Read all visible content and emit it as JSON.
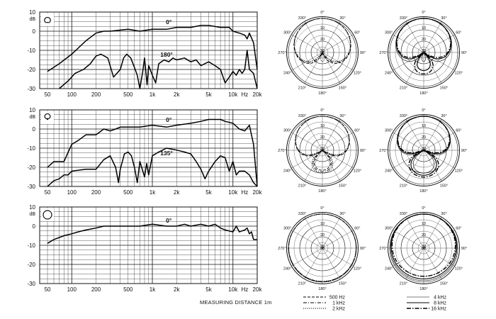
{
  "measurement_note": "MEASURING DISTANCE 1m",
  "freq_ticks": [
    "50",
    "100",
    "200",
    "500",
    "1k",
    "2k",
    "5k",
    "10k",
    "Hz",
    "20k"
  ],
  "db_unit": "dB",
  "polar_unit": "dB",
  "polar_angle_labels": [
    "0°",
    "30°",
    "60°",
    "90°",
    "120°",
    "150°",
    "180°",
    "210°",
    "240°",
    "270°",
    "300°",
    "330°"
  ],
  "polar_ring_labels": [
    "10",
    "20",
    "30"
  ],
  "legend": {
    "left": [
      {
        "label": "500 Hz",
        "style": "dash"
      },
      {
        "label": "1 kHz",
        "style": "dashdot"
      },
      {
        "label": "2 kHz",
        "style": "dot"
      }
    ],
    "right": [
      {
        "label": "4 kHz",
        "style": "solid-thin"
      },
      {
        "label": "8 kHz",
        "style": "solid"
      },
      {
        "label": "16 kHz",
        "style": "dashdot-heavy"
      }
    ]
  },
  "chart_data": [
    {
      "type": "line",
      "pattern": "cardioid",
      "xscale": "log",
      "xlim": [
        40,
        20000
      ],
      "ylim": [
        -30,
        10
      ],
      "yticks": [
        10,
        0,
        -10,
        -20,
        -30
      ],
      "ylabel": "dB",
      "grid": true,
      "series": [
        {
          "name": "0°",
          "x": [
            50,
            70,
            100,
            150,
            200,
            250,
            300,
            500,
            700,
            1000,
            1500,
            2000,
            3000,
            4000,
            5000,
            7000,
            9000,
            10000,
            12000,
            14000,
            15000,
            16000,
            18000,
            20000
          ],
          "y": [
            -21,
            -17,
            -12,
            -5,
            -1,
            0,
            0,
            1,
            0,
            1,
            1,
            2,
            2,
            3,
            3,
            2,
            2,
            0,
            -1,
            -2,
            -4,
            -1,
            -6,
            -20
          ]
        },
        {
          "name": "180°",
          "x": [
            70,
            90,
            110,
            140,
            170,
            200,
            230,
            280,
            330,
            400,
            440,
            480,
            540,
            600,
            650,
            700,
            760,
            800,
            860,
            900,
            1000,
            1100,
            1200,
            1400,
            1600,
            1800,
            2000,
            2500,
            3000,
            3500,
            4000,
            5000,
            6000,
            7000,
            8000,
            9000,
            10000,
            11000,
            12000,
            13000,
            14000,
            15000,
            16000,
            18000,
            20000
          ],
          "y": [
            -30,
            -26,
            -22,
            -20,
            -17,
            -13,
            -12,
            -14,
            -24,
            -20,
            -14,
            -12,
            -14,
            -19,
            -23,
            -30,
            -21,
            -14,
            -28,
            -18,
            -23,
            -27,
            -17,
            -15,
            -16,
            -14,
            -15,
            -14,
            -16,
            -15,
            -18,
            -16,
            -18,
            -20,
            -27,
            -24,
            -21,
            -23,
            -20,
            -22,
            -20,
            -10,
            -20,
            -22,
            -30
          ]
        }
      ]
    },
    {
      "type": "line",
      "pattern": "supercardioid",
      "xscale": "log",
      "xlim": [
        40,
        20000
      ],
      "ylim": [
        -30,
        10
      ],
      "yticks": [
        10,
        0,
        -10,
        -20,
        -30
      ],
      "ylabel": "dB",
      "grid": true,
      "series": [
        {
          "name": "0°",
          "x": [
            50,
            60,
            80,
            100,
            120,
            150,
            200,
            250,
            300,
            350,
            400,
            500,
            700,
            1000,
            1500,
            2000,
            3000,
            4000,
            5000,
            6000,
            7000,
            8000,
            10000,
            12000,
            14000,
            16000,
            18000,
            20000
          ],
          "y": [
            -20,
            -17,
            -17,
            -8,
            -6,
            -3,
            -3,
            0,
            -1,
            0,
            1,
            1,
            1,
            2,
            1,
            2,
            3,
            4,
            5,
            5,
            5,
            4,
            3,
            0,
            -1,
            2,
            -8,
            -30
          ]
        },
        {
          "name": "135°",
          "x": [
            50,
            60,
            70,
            80,
            90,
            100,
            150,
            200,
            250,
            300,
            350,
            380,
            400,
            450,
            500,
            550,
            600,
            650,
            700,
            800,
            850,
            900,
            1000,
            1200,
            1500,
            2000,
            2500,
            3000,
            3500,
            4000,
            4500,
            5000,
            6000,
            7000,
            8000,
            9000,
            10000,
            11000,
            12000,
            14000,
            16000,
            18000,
            20000
          ],
          "y": [
            -30,
            -27,
            -26,
            -24,
            -24,
            -22,
            -21,
            -21,
            -16,
            -14,
            -20,
            -28,
            -21,
            -13,
            -12,
            -14,
            -20,
            -28,
            -17,
            -25,
            -18,
            -24,
            -14,
            -12,
            -10,
            -11,
            -12,
            -13,
            -17,
            -21,
            -26,
            -22,
            -17,
            -14,
            -15,
            -22,
            -17,
            -24,
            -22,
            -22,
            -24,
            -28,
            -30
          ]
        }
      ]
    },
    {
      "type": "line",
      "pattern": "omni",
      "xscale": "log",
      "xlim": [
        40,
        20000
      ],
      "ylim": [
        -30,
        10
      ],
      "yticks": [
        10,
        0,
        -10,
        -20,
        -30
      ],
      "ylabel": "dB",
      "grid": true,
      "series": [
        {
          "name": "0°",
          "x": [
            50,
            60,
            80,
            100,
            120,
            150,
            200,
            250,
            300,
            400,
            500,
            700,
            1000,
            1500,
            2000,
            2500,
            3000,
            4000,
            5000,
            6000,
            7000,
            8000,
            10000,
            11000,
            12000,
            14000,
            15000,
            16000,
            17000,
            18000,
            20000
          ],
          "y": [
            -9,
            -7,
            -5,
            -4,
            -3,
            -2,
            -1,
            0,
            0,
            0,
            0,
            0,
            1,
            0,
            0,
            1,
            0,
            1,
            0,
            1,
            -1,
            -2,
            -3,
            0,
            -3,
            -2,
            -1,
            -4,
            -3,
            -7,
            -7
          ]
        }
      ]
    }
  ],
  "polar_data": {
    "rlim": [
      0,
      30
    ],
    "rticks": [
      10,
      20,
      30
    ],
    "series": [
      "500 Hz",
      "1 kHz",
      "2 kHz",
      "4 kHz",
      "8 kHz",
      "16 kHz"
    ],
    "plots": [
      {
        "pattern": "cardioid",
        "group": "low",
        "a": [
          0.5,
          0.48,
          0.46
        ]
      },
      {
        "pattern": "cardioid",
        "group": "high",
        "a": [
          0.46,
          0.4,
          0.36
        ]
      },
      {
        "pattern": "supercardioid",
        "group": "low",
        "a": [
          0.38,
          0.36,
          0.34
        ]
      },
      {
        "pattern": "supercardioid",
        "group": "high",
        "a": [
          0.34,
          0.3,
          0.26
        ]
      },
      {
        "pattern": "omni",
        "group": "low",
        "a": [
          0.96,
          0.94,
          0.92
        ]
      },
      {
        "pattern": "omni",
        "group": "high",
        "a": [
          0.86,
          0.72,
          0.55
        ]
      }
    ]
  }
}
